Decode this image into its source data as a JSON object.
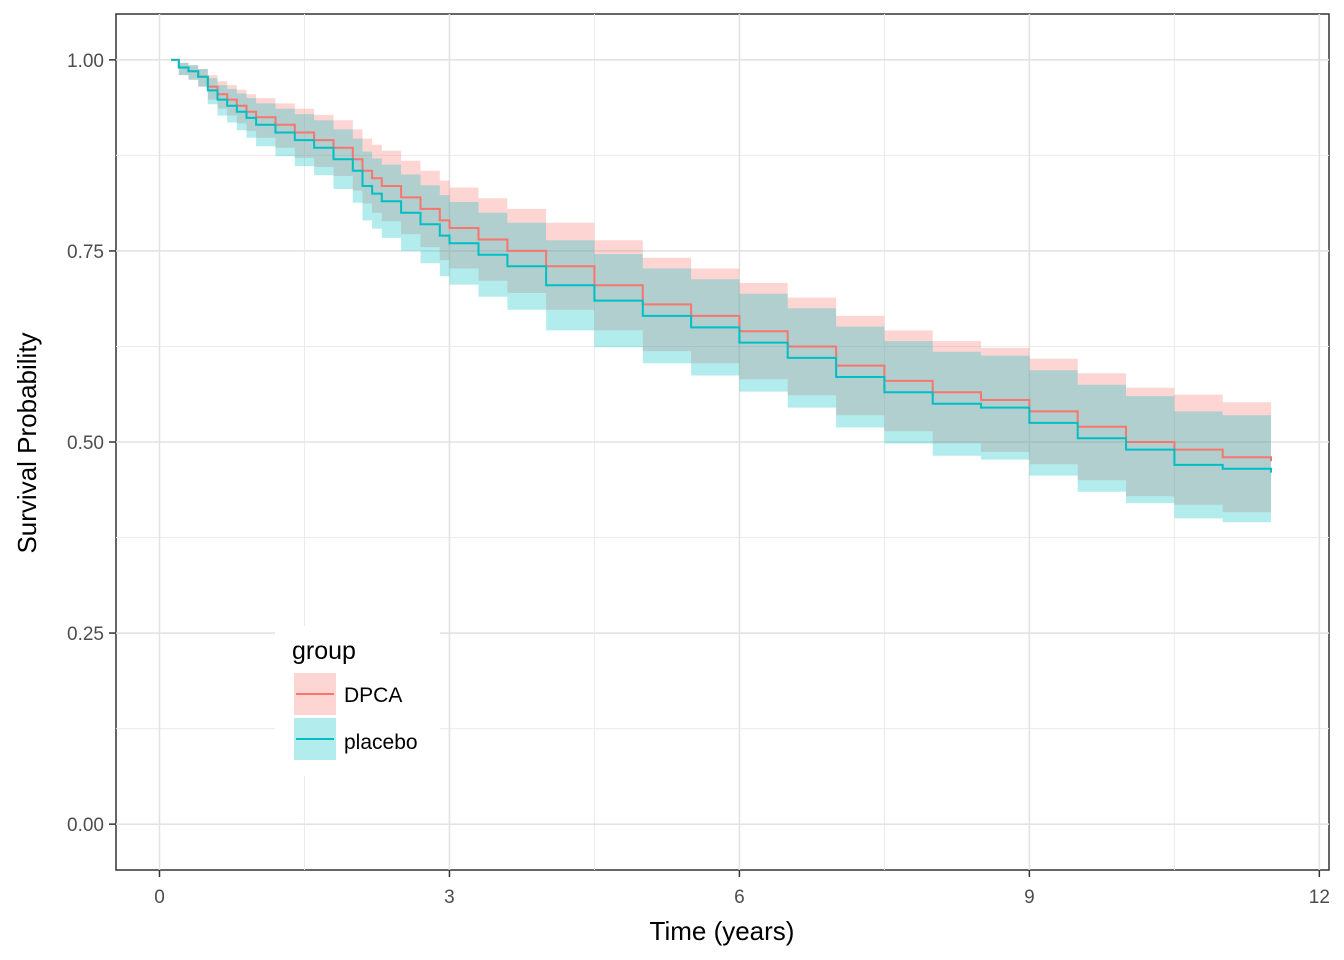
{
  "chart_data": {
    "type": "line",
    "title": "",
    "xlabel": "Time (years)",
    "ylabel": "Survival Probability",
    "xlim": [
      -0.45,
      12.1
    ],
    "ylim": [
      -0.06,
      1.06
    ],
    "x_ticks": [
      0,
      3,
      6,
      9,
      12
    ],
    "x_tick_labels": [
      "0",
      "3",
      "6",
      "9",
      "12"
    ],
    "y_ticks": [
      0,
      0.25,
      0.5,
      0.75,
      1.0
    ],
    "y_tick_labels": [
      "0.00",
      "0.25",
      "0.50",
      "0.75",
      "1.00"
    ],
    "grid": true,
    "legend": {
      "title": "group",
      "position": "bottom-left inside"
    },
    "series": [
      {
        "name": "DPCA",
        "color": "#F8766D",
        "band_color": "#F8766D",
        "x": [
          0.12,
          0.2,
          0.3,
          0.4,
          0.5,
          0.6,
          0.7,
          0.8,
          0.9,
          1.0,
          1.2,
          1.4,
          1.6,
          1.8,
          2.0,
          2.1,
          2.2,
          2.3,
          2.5,
          2.7,
          2.9,
          3.0,
          3.3,
          3.6,
          4.0,
          4.5,
          5.0,
          5.5,
          6.0,
          6.5,
          7.0,
          7.5,
          8.0,
          8.5,
          9.0,
          9.5,
          10.0,
          10.5,
          11.0,
          11.5
        ],
        "y": [
          1.0,
          0.99,
          0.985,
          0.978,
          0.965,
          0.955,
          0.948,
          0.94,
          0.932,
          0.925,
          0.915,
          0.905,
          0.895,
          0.885,
          0.87,
          0.855,
          0.845,
          0.835,
          0.82,
          0.805,
          0.79,
          0.78,
          0.765,
          0.75,
          0.73,
          0.705,
          0.68,
          0.665,
          0.645,
          0.625,
          0.6,
          0.58,
          0.565,
          0.555,
          0.54,
          0.52,
          0.5,
          0.49,
          0.48,
          0.475
        ],
        "lower": [
          1.0,
          0.98,
          0.974,
          0.965,
          0.948,
          0.936,
          0.927,
          0.917,
          0.907,
          0.898,
          0.885,
          0.872,
          0.86,
          0.848,
          0.829,
          0.812,
          0.8,
          0.789,
          0.772,
          0.755,
          0.738,
          0.727,
          0.711,
          0.695,
          0.673,
          0.646,
          0.619,
          0.603,
          0.582,
          0.561,
          0.535,
          0.514,
          0.498,
          0.487,
          0.471,
          0.45,
          0.429,
          0.418,
          0.408,
          0.402
        ],
        "upper": [
          1.0,
          0.996,
          0.993,
          0.988,
          0.98,
          0.972,
          0.967,
          0.961,
          0.955,
          0.95,
          0.943,
          0.936,
          0.928,
          0.921,
          0.909,
          0.897,
          0.889,
          0.881,
          0.868,
          0.855,
          0.842,
          0.833,
          0.819,
          0.805,
          0.787,
          0.764,
          0.741,
          0.727,
          0.708,
          0.689,
          0.665,
          0.646,
          0.632,
          0.623,
          0.609,
          0.59,
          0.571,
          0.562,
          0.552,
          0.547
        ]
      },
      {
        "name": "placebo",
        "color": "#00BFC4",
        "band_color": "#00BFC4",
        "x": [
          0.12,
          0.2,
          0.3,
          0.4,
          0.5,
          0.6,
          0.7,
          0.8,
          0.9,
          1.0,
          1.2,
          1.4,
          1.6,
          1.8,
          2.0,
          2.1,
          2.2,
          2.3,
          2.5,
          2.7,
          2.9,
          3.0,
          3.3,
          3.6,
          4.0,
          4.5,
          5.0,
          5.5,
          6.0,
          6.5,
          7.0,
          7.5,
          8.0,
          8.5,
          9.0,
          9.5,
          10.0,
          10.5,
          11.0,
          11.5
        ],
        "y": [
          1.0,
          0.99,
          0.985,
          0.978,
          0.96,
          0.948,
          0.94,
          0.932,
          0.924,
          0.915,
          0.905,
          0.895,
          0.885,
          0.87,
          0.855,
          0.835,
          0.825,
          0.815,
          0.8,
          0.785,
          0.77,
          0.76,
          0.745,
          0.73,
          0.705,
          0.685,
          0.665,
          0.65,
          0.63,
          0.61,
          0.585,
          0.565,
          0.55,
          0.545,
          0.525,
          0.505,
          0.49,
          0.47,
          0.465,
          0.46
        ],
        "lower": [
          1.0,
          0.98,
          0.974,
          0.965,
          0.942,
          0.927,
          0.918,
          0.908,
          0.898,
          0.887,
          0.874,
          0.861,
          0.849,
          0.831,
          0.813,
          0.79,
          0.779,
          0.767,
          0.75,
          0.734,
          0.717,
          0.706,
          0.69,
          0.673,
          0.646,
          0.624,
          0.603,
          0.587,
          0.566,
          0.545,
          0.519,
          0.498,
          0.482,
          0.477,
          0.456,
          0.435,
          0.42,
          0.4,
          0.395,
          0.39
        ],
        "upper": [
          1.0,
          0.996,
          0.993,
          0.988,
          0.976,
          0.967,
          0.962,
          0.956,
          0.95,
          0.943,
          0.936,
          0.929,
          0.921,
          0.909,
          0.897,
          0.88,
          0.871,
          0.863,
          0.85,
          0.836,
          0.823,
          0.814,
          0.8,
          0.787,
          0.764,
          0.746,
          0.727,
          0.713,
          0.694,
          0.675,
          0.651,
          0.632,
          0.618,
          0.613,
          0.594,
          0.575,
          0.56,
          0.54,
          0.535,
          0.53
        ]
      }
    ]
  }
}
